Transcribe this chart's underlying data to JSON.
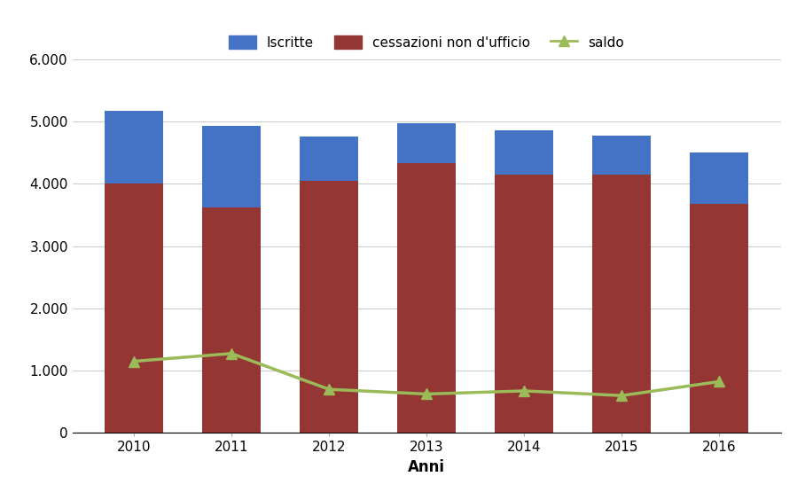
{
  "years": [
    2010,
    2011,
    2012,
    2013,
    2014,
    2015,
    2016
  ],
  "iscritte": [
    5175,
    4925,
    4750,
    4975,
    4850,
    4775,
    4500
  ],
  "cessazioni": [
    4000,
    3625,
    4050,
    4325,
    4150,
    4150,
    3675
  ],
  "saldo": [
    1150,
    1275,
    700,
    625,
    675,
    600,
    825
  ],
  "bar_color_iscritte": "#4472C4",
  "bar_color_cessazioni": "#943634",
  "line_color_saldo": "#9BBB59",
  "marker_saldo": "^",
  "ylim": [
    0,
    6000
  ],
  "yticks": [
    0,
    1000,
    2000,
    3000,
    4000,
    5000,
    6000
  ],
  "ytick_labels": [
    "0",
    "1.000",
    "2.000",
    "3.000",
    "4.000",
    "5.000",
    "6.000"
  ],
  "xlabel": "Anni",
  "legend_labels": [
    "Iscritte",
    "cessazioni non d'ufficio",
    "saldo"
  ],
  "bar_width": 0.6,
  "grid_color": "#CCCCCC",
  "background_color": "#FFFFFF"
}
